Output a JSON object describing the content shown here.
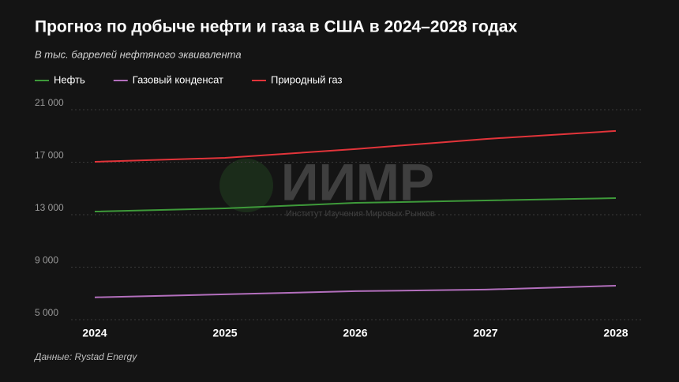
{
  "chart_data": {
    "type": "line",
    "title": "Прогноз по добыче нефти и газа в США в 2024–2028 годах",
    "subtitle": "В тыс. баррелей нефтяного эквивалента",
    "source": "Данные: Rystad Energy",
    "watermark": {
      "logo": "ИИМР",
      "text": "Институт Изучения Мировых Рынков"
    },
    "categories": [
      "2024",
      "2025",
      "2026",
      "2027",
      "2028"
    ],
    "series": [
      {
        "name": "Нефть",
        "color": "#3e9a3a",
        "values": [
          13240,
          13480,
          13900,
          14080,
          14260
        ]
      },
      {
        "name": "Газовый конденсат",
        "color": "#b36fbd",
        "values": [
          6700,
          6930,
          7170,
          7290,
          7590
        ]
      },
      {
        "name": "Природный газ",
        "color": "#e2343a",
        "values": [
          17030,
          17330,
          18000,
          18770,
          19380
        ]
      }
    ],
    "ylim": [
      5000,
      21000
    ],
    "yticks": [
      {
        "value": 5000,
        "label": "5 000"
      },
      {
        "value": 9000,
        "label": "9 000"
      },
      {
        "value": 13000,
        "label": "13 000"
      },
      {
        "value": 17000,
        "label": "17 000"
      },
      {
        "value": 21000,
        "label": "21 000"
      }
    ],
    "grid": true
  }
}
